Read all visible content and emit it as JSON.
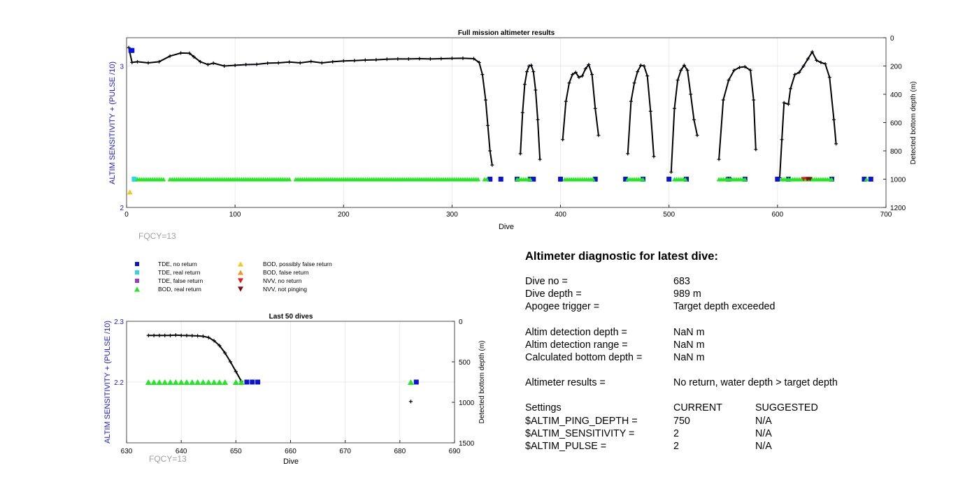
{
  "chart_data": [
    {
      "type": "scatter",
      "title": "Full mission altimeter results",
      "xlabel": "Dive",
      "ylabel": "ALTIM SENSITIVITY + (PULSE /10)",
      "y2label": "Detected bottom depth (m)",
      "xlim": [
        0,
        700
      ],
      "ylim": [
        2,
        3.2
      ],
      "y2lim": [
        0,
        1200
      ],
      "y2_reversed": true,
      "xticks": [
        "0",
        "100",
        "200",
        "300",
        "400",
        "500",
        "600",
        "700"
      ],
      "yticks": [
        "2",
        "3"
      ],
      "y2ticks": [
        "0",
        "200",
        "400",
        "600",
        "800",
        "1000",
        "1200"
      ],
      "grid": true,
      "annotation": "FQCY=13",
      "series": [
        {
          "name": "Detected bottom depth",
          "axis": "right",
          "color": "#000000",
          "segments": [
            [
              [
                2,
                70
              ],
              [
                5,
                175
              ],
              [
                10,
                170
              ],
              [
                20,
                178
              ],
              [
                30,
                170
              ],
              [
                40,
                130
              ],
              [
                50,
                108
              ],
              [
                58,
                110
              ],
              [
                62,
                135
              ],
              [
                68,
                170
              ],
              [
                75,
                190
              ],
              [
                80,
                180
              ],
              [
                90,
                200
              ],
              [
                100,
                195
              ],
              [
                110,
                190
              ],
              [
                120,
                188
              ],
              [
                130,
                180
              ],
              [
                140,
                178
              ],
              [
                150,
                172
              ],
              [
                160,
                178
              ],
              [
                170,
                168
              ],
              [
                180,
                178
              ],
              [
                190,
                170
              ],
              [
                200,
                164
              ],
              [
                210,
                162
              ],
              [
                220,
                158
              ],
              [
                230,
                156
              ],
              [
                240,
                152
              ],
              [
                250,
                150
              ],
              [
                260,
                150
              ],
              [
                270,
                148
              ],
              [
                280,
                150
              ],
              [
                290,
                148
              ],
              [
                300,
                146
              ],
              [
                310,
                145
              ],
              [
                320,
                148
              ],
              [
                325,
                175
              ],
              [
                328,
                260
              ],
              [
                331,
                440
              ],
              [
                333,
                620
              ],
              [
                335,
                800
              ],
              [
                337,
                900
              ]
            ],
            [
              [
                363,
                820
              ],
              [
                365,
                530
              ],
              [
                367,
                330
              ],
              [
                369,
                240
              ],
              [
                371,
                200
              ],
              [
                373,
                195
              ],
              [
                375,
                240
              ],
              [
                377,
                370
              ],
              [
                379,
                580
              ],
              [
                381,
                860
              ]
            ],
            [
              [
                402,
                720
              ],
              [
                405,
                450
              ],
              [
                408,
                320
              ],
              [
                411,
                260
              ],
              [
                414,
                245
              ],
              [
                417,
                280
              ],
              [
                420,
                270
              ],
              [
                423,
                220
              ],
              [
                426,
                190
              ],
              [
                429,
                260
              ],
              [
                432,
                500
              ],
              [
                435,
                690
              ]
            ],
            [
              [
                462,
                820
              ],
              [
                465,
                450
              ],
              [
                468,
                320
              ],
              [
                471,
                240
              ],
              [
                474,
                195
              ],
              [
                477,
                200
              ],
              [
                480,
                270
              ],
              [
                483,
                520
              ],
              [
                486,
                840
              ]
            ],
            [
              [
                502,
                950
              ],
              [
                505,
                500
              ],
              [
                508,
                300
              ],
              [
                511,
                230
              ],
              [
                514,
                195
              ],
              [
                517,
                230
              ],
              [
                520,
                400
              ],
              [
                523,
                580
              ],
              [
                526,
                690
              ]
            ],
            [
              [
                546,
                860
              ],
              [
                550,
                440
              ],
              [
                555,
                300
              ],
              [
                560,
                230
              ],
              [
                565,
                210
              ],
              [
                570,
                205
              ],
              [
                575,
                230
              ],
              [
                578,
                440
              ],
              [
                580,
                790
              ]
            ],
            [
              [
                602,
                990
              ],
              [
                604,
                720
              ],
              [
                606,
                460
              ],
              [
                610,
                470
              ],
              [
                612,
                360
              ],
              [
                616,
                260
              ],
              [
                620,
                245
              ],
              [
                624,
                200
              ],
              [
                628,
                150
              ],
              [
                632,
                100
              ],
              [
                636,
                160
              ],
              [
                640,
                175
              ],
              [
                644,
                185
              ],
              [
                648,
                280
              ],
              [
                652,
                580
              ],
              [
                654,
                750
              ]
            ]
          ]
        },
        {
          "name": "TDE, no return",
          "axis": "left",
          "color": "#0a14d8",
          "x": [
            4,
            5,
            335,
            345,
            360,
            372,
            375,
            400,
            432,
            460,
            476,
            500,
            516,
            555,
            570,
            600,
            610,
            650,
            680,
            686
          ],
          "y": [
            3.11,
            3.11,
            2.2,
            2.2,
            2.2,
            2.2,
            2.2,
            2.2,
            2.2,
            2.2,
            2.2,
            2.2,
            2.2,
            2.2,
            2.2,
            2.2,
            2.2,
            2.2,
            2.2,
            2.2
          ]
        },
        {
          "name": "TDE, real return",
          "axis": "left",
          "color": "#25d9e8",
          "x": [
            7
          ],
          "y": [
            2.2
          ]
        },
        {
          "name": "BOD, real return",
          "axis": "left",
          "color": "#22e822",
          "ranges": [
            [
              10,
              333
            ],
            [
              360,
              372
            ],
            [
              404,
              430
            ],
            [
              462,
              476
            ],
            [
              505,
              516
            ],
            [
              546,
              570
            ],
            [
              604,
              650
            ],
            [
              682,
              682
            ]
          ],
          "y": 2.2,
          "gaps_at": [
            37,
            153,
            327
          ]
        },
        {
          "name": "BOD, possibly false return",
          "axis": "left",
          "color": "#f2c81a",
          "x": [
            3
          ],
          "y": [
            2.11
          ]
        },
        {
          "name": "NVV, no return",
          "axis": "left",
          "color": "#e21b1b",
          "x": [
            624,
            627
          ],
          "y": [
            2.2,
            2.2
          ]
        },
        {
          "name": "NVV, not pinging",
          "axis": "left",
          "color": "#7a0f0f",
          "x": [
            628,
            630
          ],
          "y": [
            2.2,
            2.2
          ]
        }
      ]
    },
    {
      "type": "scatter",
      "title": "Last 50 dives",
      "xlabel": "Dive",
      "ylabel": "ALTIM SENSITIVITY + (PULSE /10)",
      "y2label": "Detected bottom depth (m)",
      "xlim": [
        630,
        690
      ],
      "ylim": [
        2.1,
        2.3
      ],
      "y2lim": [
        0,
        1500
      ],
      "y2_reversed": true,
      "xticks": [
        "630",
        "640",
        "650",
        "660",
        "670",
        "680",
        "690"
      ],
      "yticks": [
        "2.2",
        "2.3"
      ],
      "y2ticks": [
        "0",
        "500",
        "1000",
        "1500"
      ],
      "grid": true,
      "annotation": "FQCY=13",
      "series": [
        {
          "name": "Detected bottom depth",
          "axis": "right",
          "color": "#000000",
          "x": [
            634,
            635,
            636,
            637,
            638,
            639,
            640,
            641,
            642,
            643,
            644,
            645,
            646,
            647,
            648,
            649,
            650,
            651
          ],
          "y": [
            175,
            175,
            175,
            175,
            175,
            170,
            175,
            176,
            178,
            180,
            185,
            200,
            240,
            300,
            390,
            500,
            620,
            740
          ]
        },
        {
          "name": "Detected bottom depth (dive 682)",
          "axis": "right",
          "color": "#000000",
          "x": [
            682
          ],
          "y": [
            990
          ]
        },
        {
          "name": "BOD, real return",
          "axis": "left",
          "color": "#22e822",
          "x": [
            634,
            635,
            636,
            637,
            638,
            639,
            640,
            641,
            642,
            643,
            644,
            645,
            646,
            647,
            648,
            650,
            651,
            682
          ],
          "y": [
            2.2,
            2.2,
            2.2,
            2.2,
            2.2,
            2.2,
            2.2,
            2.2,
            2.2,
            2.2,
            2.2,
            2.2,
            2.2,
            2.2,
            2.2,
            2.2,
            2.2,
            2.2
          ]
        },
        {
          "name": "TDE, no return",
          "axis": "left",
          "color": "#0a14d8",
          "x": [
            652,
            653,
            654,
            683
          ],
          "y": [
            2.2,
            2.2,
            2.2,
            2.2
          ]
        }
      ]
    }
  ],
  "legend": {
    "items": [
      {
        "label": "TDE, no return",
        "marker": "square",
        "color": "#0a14d8"
      },
      {
        "label": "TDE, real return",
        "marker": "square",
        "color": "#25d9e8"
      },
      {
        "label": "TDE, false return",
        "marker": "square",
        "color": "#9b38cc"
      },
      {
        "label": "BOD, real return",
        "marker": "triangle-up",
        "color": "#22e822"
      },
      {
        "label": "BOD, possibly false return",
        "marker": "triangle-up",
        "color": "#f2c81a"
      },
      {
        "label": "BOD, false return",
        "marker": "triangle-up",
        "color": "#f29a1a"
      },
      {
        "label": "NVV, no return",
        "marker": "triangle-down",
        "color": "#e21b1b"
      },
      {
        "label": "NVV, not pinging",
        "marker": "triangle-down",
        "color": "#7a0f0f"
      }
    ]
  },
  "diagnostic": {
    "title": "Altimeter diagnostic for latest dive:",
    "dive_no_label": "Dive no =",
    "dive_no": "683",
    "dive_depth_label": "Dive depth =",
    "dive_depth": "989 m",
    "apogee_label": "Apogee trigger =",
    "apogee": "Target depth exceeded",
    "detection_depth_label": "Altim detection depth =",
    "detection_depth": "NaN m",
    "detection_range_label": "Altim detection range =",
    "detection_range": "NaN m",
    "bottom_depth_label": "Calculated bottom depth =",
    "bottom_depth": "NaN m",
    "results_label": "Altimeter results =",
    "results": "No return, water depth > target depth",
    "settings_label": "Settings",
    "current_label": "CURRENT",
    "suggested_label": "SUGGESTED",
    "settings": [
      {
        "name": "$ALTIM_PING_DEPTH =",
        "current": "750",
        "suggested": "N/A"
      },
      {
        "name": "$ALTIM_SENSITIVITY =",
        "current": "2",
        "suggested": "N/A"
      },
      {
        "name": "$ALTIM_PULSE =",
        "current": "2",
        "suggested": "N/A"
      }
    ]
  },
  "colors": {
    "left_axis": "#1a1adb",
    "grid": "#e6e6e6",
    "annotation": "#a0a0a0"
  }
}
